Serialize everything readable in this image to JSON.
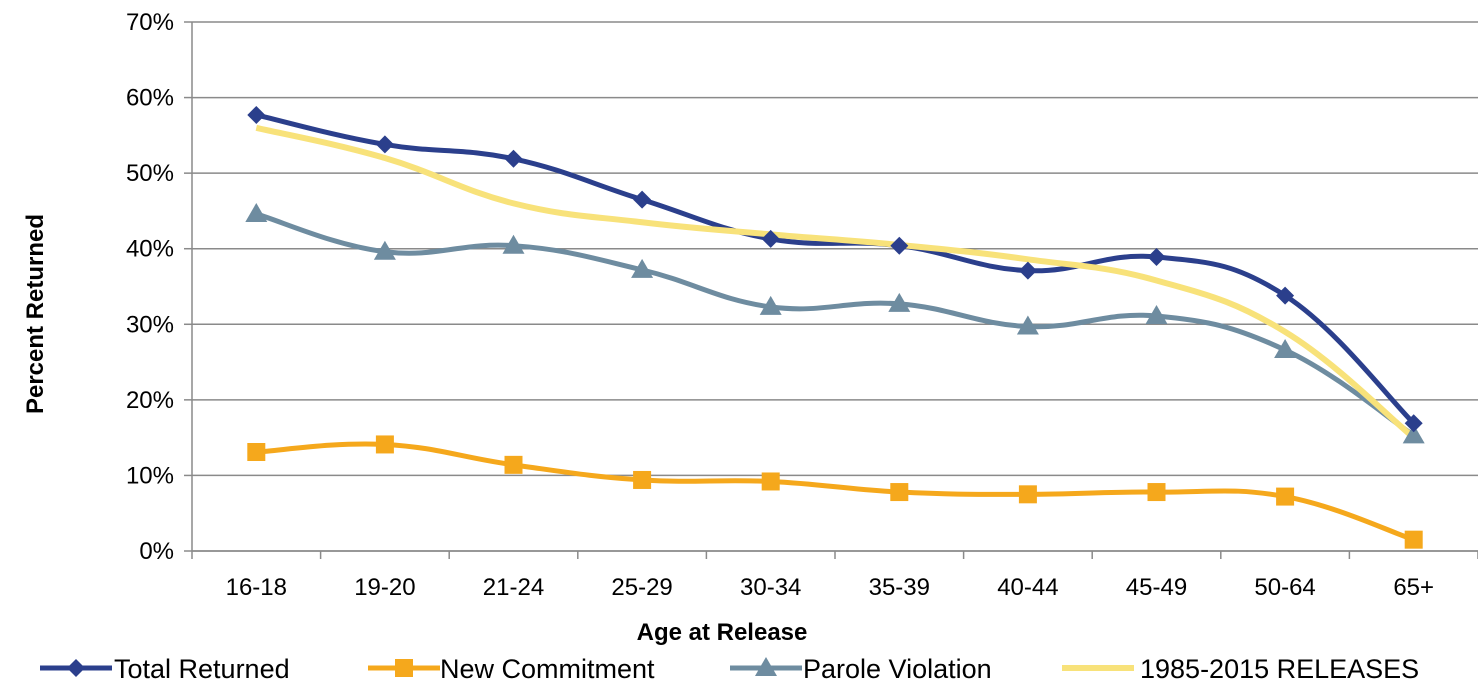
{
  "chart_data": {
    "type": "line",
    "title": "",
    "xlabel": "Age at Release",
    "ylabel": "Percent Returned",
    "categories": [
      "16-18",
      "19-20",
      "21-24",
      "25-29",
      "30-34",
      "35-39",
      "40-44",
      "45-49",
      "50-64",
      "65+"
    ],
    "ylim": [
      0,
      70
    ],
    "yticks": [
      "0%",
      "10%",
      "20%",
      "30%",
      "40%",
      "50%",
      "60%",
      "70%"
    ],
    "grid": "horizontal",
    "legend_position": "bottom",
    "series": [
      {
        "name": "Total Returned",
        "color": "#2B3F8C",
        "marker": "diamond",
        "values": [
          57.7,
          53.8,
          51.9,
          46.5,
          41.3,
          40.4,
          37.1,
          38.9,
          33.8,
          16.9
        ]
      },
      {
        "name": "New Commitment",
        "color": "#F5A81C",
        "marker": "square",
        "values": [
          13.1,
          14.1,
          11.4,
          9.4,
          9.2,
          7.8,
          7.5,
          7.8,
          7.2,
          1.5
        ]
      },
      {
        "name": "Parole Violation",
        "color": "#6E8CA0",
        "marker": "triangle",
        "values": [
          44.6,
          39.6,
          40.4,
          37.2,
          32.3,
          32.7,
          29.7,
          31.1,
          26.6,
          15.3
        ]
      },
      {
        "name": "1985-2015 RELEASES",
        "color": "#F8E27A",
        "marker": "none",
        "values": [
          56.0,
          52.0,
          46.0,
          43.5,
          41.9,
          40.5,
          38.6,
          35.8,
          29.0,
          15.0
        ]
      }
    ]
  }
}
